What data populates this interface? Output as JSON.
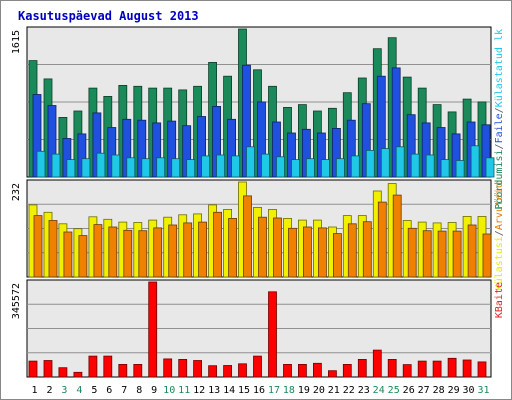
{
  "chart_data": [
    {
      "type": "bar",
      "title": "Kasutuspäevad August 2013",
      "categories": [
        "1",
        "2",
        "3",
        "4",
        "5",
        "6",
        "7",
        "8",
        "9",
        "10",
        "11",
        "12",
        "13",
        "14",
        "15",
        "16",
        "17",
        "18",
        "19",
        "20",
        "21",
        "22",
        "23",
        "24",
        "25",
        "26",
        "27",
        "28",
        "29",
        "30",
        "31"
      ],
      "weekend_days": [
        "3",
        "4",
        "10",
        "11",
        "17",
        "18",
        "24",
        "25",
        "31"
      ],
      "y_max_label": "1615",
      "ylim": [
        0,
        1615
      ],
      "grid": true,
      "legend_position": "right-vertical",
      "legend": [
        {
          "label": "Pöördumisi",
          "color": "#1a8a5a"
        },
        {
          "label": "/",
          "color": "#555555"
        },
        {
          "label": "Faile",
          "color": "#2050e0"
        },
        {
          "label": "/",
          "color": "#555555"
        },
        {
          "label": "Külastatud lk",
          "color": "#20c8e8"
        }
      ],
      "series": [
        {
          "name": "Pöördumisi",
          "color": "#1a8a5a",
          "values": [
            1270,
            1070,
            650,
            720,
            970,
            880,
            1000,
            990,
            970,
            970,
            950,
            990,
            1250,
            1100,
            1615,
            1170,
            990,
            760,
            790,
            720,
            750,
            920,
            1080,
            1400,
            1520,
            1090,
            970,
            790,
            710,
            850,
            820
          ]
        },
        {
          "name": "Faile",
          "color": "#2050e0",
          "values": [
            900,
            780,
            420,
            470,
            700,
            540,
            630,
            620,
            590,
            610,
            560,
            660,
            770,
            630,
            1220,
            820,
            600,
            480,
            520,
            480,
            530,
            620,
            800,
            1100,
            1190,
            680,
            590,
            540,
            470,
            600,
            570
          ]
        },
        {
          "name": "Külastatud lk",
          "color": "#20c8e8",
          "values": [
            280,
            250,
            190,
            200,
            260,
            240,
            210,
            200,
            210,
            200,
            190,
            230,
            240,
            230,
            330,
            250,
            220,
            190,
            200,
            190,
            200,
            230,
            290,
            310,
            330,
            250,
            240,
            190,
            180,
            340,
            210
          ]
        }
      ]
    },
    {
      "type": "bar",
      "categories": [
        "1",
        "2",
        "3",
        "4",
        "5",
        "6",
        "7",
        "8",
        "9",
        "10",
        "11",
        "12",
        "13",
        "14",
        "15",
        "16",
        "17",
        "18",
        "19",
        "20",
        "21",
        "22",
        "23",
        "24",
        "25",
        "26",
        "27",
        "28",
        "29",
        "30",
        "31"
      ],
      "y_max_label": "232",
      "ylim": [
        0,
        232
      ],
      "grid": true,
      "legend": [
        {
          "label": "Külastusi",
          "color": "#e8e800"
        },
        {
          "label": "/",
          "color": "#555555"
        },
        {
          "label": "Arvuteid",
          "color": "#e87800"
        }
      ],
      "series": [
        {
          "name": "Külastusi",
          "color": "#f0f000",
          "values": [
            176,
            158,
            130,
            118,
            147,
            141,
            134,
            133,
            139,
            146,
            152,
            154,
            176,
            165,
            232,
            170,
            165,
            143,
            139,
            139,
            122,
            150,
            150,
            210,
            228,
            138,
            134,
            132,
            133,
            148,
            148
          ]
        },
        {
          "name": "Arvuteid",
          "color": "#f08000",
          "values": [
            150,
            138,
            110,
            101,
            128,
            122,
            114,
            113,
            120,
            127,
            132,
            134,
            158,
            143,
            198,
            146,
            144,
            119,
            122,
            120,
            106,
            130,
            135,
            183,
            200,
            119,
            113,
            112,
            112,
            127,
            105
          ]
        }
      ]
    },
    {
      "type": "bar",
      "categories": [
        "1",
        "2",
        "3",
        "4",
        "5",
        "6",
        "7",
        "8",
        "9",
        "10",
        "11",
        "12",
        "13",
        "14",
        "15",
        "16",
        "17",
        "18",
        "19",
        "20",
        "21",
        "22",
        "23",
        "24",
        "25",
        "26",
        "27",
        "28",
        "29",
        "30",
        "31"
      ],
      "y_max_label": "345572",
      "ylim": [
        0,
        345572
      ],
      "grid": true,
      "legend": [
        {
          "label": "KBaite",
          "color": "#e02020"
        }
      ],
      "series": [
        {
          "name": "KBaite",
          "color": "#ff0000",
          "values": [
            58000,
            60000,
            34000,
            17000,
            76000,
            76000,
            46000,
            46000,
            345572,
            66000,
            64000,
            60000,
            41000,
            42000,
            48000,
            76000,
            310000,
            46000,
            46000,
            50000,
            23000,
            46000,
            64000,
            98000,
            64000,
            45000,
            58000,
            58000,
            68000,
            62000,
            55000
          ]
        }
      ]
    }
  ]
}
